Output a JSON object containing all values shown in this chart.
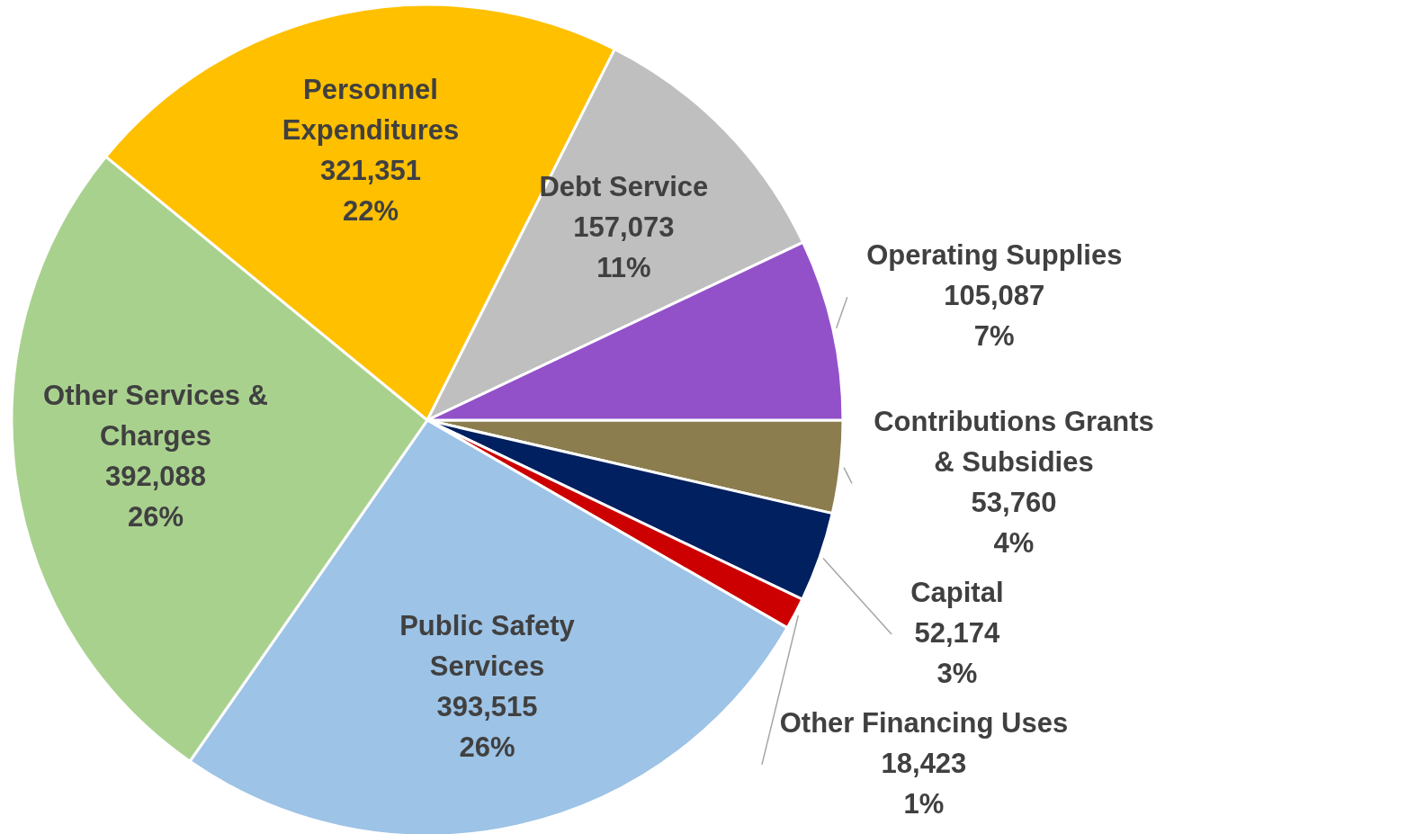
{
  "chart_data": {
    "type": "pie",
    "categories": [
      "Contributions Grants & Subsidies",
      "Capital",
      "Other Financing Uses",
      "Public Safety Services",
      "Other Services & Charges",
      "Personnel Expenditures",
      "Debt Service",
      "Operating Supplies"
    ],
    "values": [
      53760,
      52174,
      18423,
      393515,
      392088,
      321351,
      157073,
      105087
    ],
    "colors": [
      "#8b7d4e",
      "#002060",
      "#cc0000",
      "#9dc3e6",
      "#a9d18e",
      "#ffc000",
      "#bfbfbf",
      "#9351c9"
    ],
    "value_labels": [
      "53,760\n4%",
      "52,174\n3%",
      "18,423\n1%",
      "393,515\n26%",
      "392,088\n26%",
      "321,351\n22%",
      "157,073\n11%",
      "105,087\n7%"
    ]
  }
}
